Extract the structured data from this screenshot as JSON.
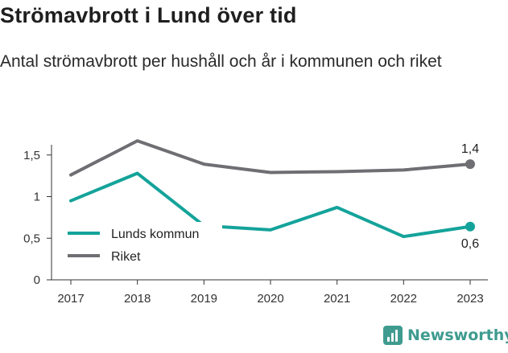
{
  "title": "Strömavbrott i Lund över tid",
  "subtitle": "Antal strömavbrott per hushåll och år i kommunen och riket",
  "brand": {
    "name": "Newsworthy",
    "icon": "bar-chart-icon",
    "color": "#3f9b8f"
  },
  "chart_data": {
    "type": "line",
    "x": [
      "2017",
      "2018",
      "2019",
      "2020",
      "2021",
      "2022",
      "2023"
    ],
    "series": [
      {
        "name": "Lunds kommun",
        "color": "#14a39a",
        "values": [
          0.95,
          1.28,
          0.65,
          0.6,
          0.87,
          0.52,
          0.64
        ],
        "end_label": "0,6"
      },
      {
        "name": "Riket",
        "color": "#6e6e73",
        "values": [
          1.26,
          1.67,
          1.39,
          1.29,
          1.3,
          1.32,
          1.39
        ],
        "end_label": "1,4"
      }
    ],
    "ylim": [
      0,
      1.7
    ],
    "yticks": [
      0,
      0.5,
      1,
      1.5
    ],
    "ytick_labels": [
      "0",
      "0,5",
      "1",
      "1,5"
    ],
    "grid": false,
    "legend": "bottom-left"
  }
}
